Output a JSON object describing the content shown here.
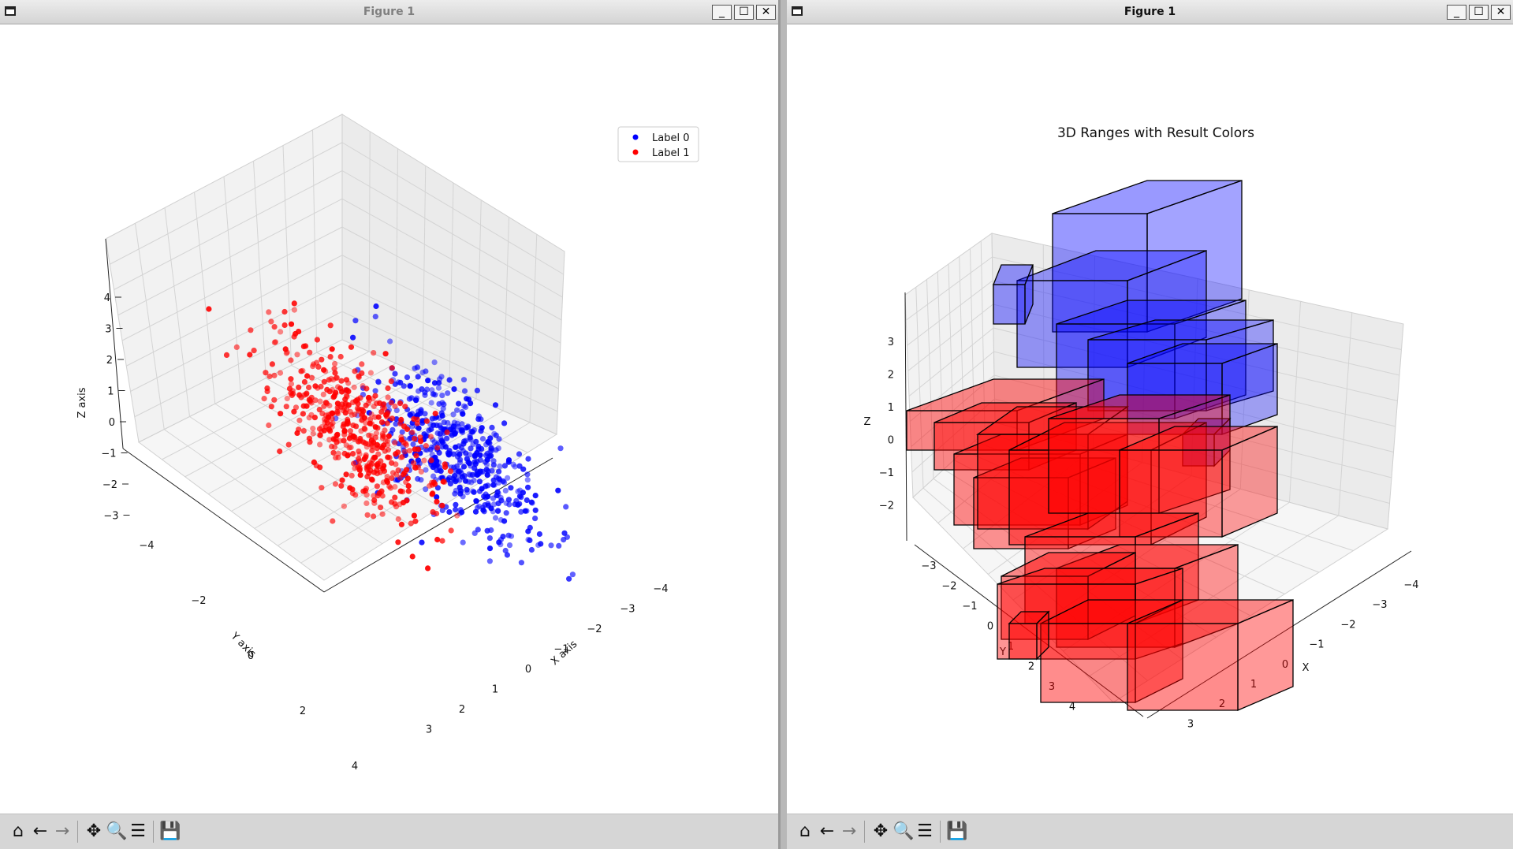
{
  "left_window": {
    "title": "Figure 1",
    "controls": {
      "minimize": "_",
      "maximize": "☐",
      "close": "✕"
    },
    "toolbar": [
      {
        "name": "home-icon",
        "glyph": "⌂"
      },
      {
        "name": "back-icon",
        "glyph": "←"
      },
      {
        "name": "forward-icon",
        "glyph": "→"
      },
      {
        "name": "pan-icon",
        "glyph": "✥"
      },
      {
        "name": "zoom-icon",
        "glyph": "🔍"
      },
      {
        "name": "configure-icon",
        "glyph": "☰"
      },
      {
        "name": "save-icon",
        "glyph": "💾"
      }
    ]
  },
  "right_window": {
    "title": "Figure 1",
    "controls": {
      "minimize": "_",
      "maximize": "☐",
      "close": "✕"
    },
    "toolbar": [
      {
        "name": "home-icon",
        "glyph": "⌂"
      },
      {
        "name": "back-icon",
        "glyph": "←"
      },
      {
        "name": "forward-icon",
        "glyph": "→"
      },
      {
        "name": "pan-icon",
        "glyph": "✥"
      },
      {
        "name": "zoom-icon",
        "glyph": "🔍"
      },
      {
        "name": "configure-icon",
        "glyph": "☰"
      },
      {
        "name": "save-icon",
        "glyph": "💾"
      }
    ]
  },
  "chart_data": [
    {
      "type": "scatter",
      "title": "",
      "xlabel": "X axis",
      "ylabel": "Y axis",
      "zlabel": "Z axis",
      "x_ticks": [
        "−4",
        "−3",
        "−2",
        "−1",
        "0",
        "1",
        "2",
        "3"
      ],
      "y_ticks": [
        "−4",
        "−2",
        "0",
        "2",
        "4"
      ],
      "z_ticks": [
        "4",
        "3",
        "2",
        "1",
        "0",
        "−1",
        "−2",
        "−3"
      ],
      "legend": {
        "placement": "top-right",
        "entries": [
          {
            "label": "Label 0",
            "color": "#0000ff"
          },
          {
            "label": "Label 1",
            "color": "#ff0000"
          }
        ]
      },
      "series": [
        {
          "name": "Label 0",
          "color": "#0000ff",
          "x_center": -1.0,
          "y_center": 0.5,
          "z_center": 0.5,
          "count": 500
        },
        {
          "name": "Label 1",
          "color": "#ff0000",
          "x_center": 1.0,
          "y_center": -1.0,
          "z_center": -0.8,
          "count": 500
        }
      ],
      "grid": true
    },
    {
      "type": "bar",
      "title": "3D Ranges with Result Colors",
      "xlabel": "X",
      "ylabel": "Y",
      "zlabel": "Z",
      "x_ticks": [
        "−4",
        "−3",
        "−2",
        "−1",
        "0",
        "1",
        "2",
        "3"
      ],
      "y_ticks": [
        "−3",
        "−2",
        "−1",
        "0",
        "1",
        "2",
        "3",
        "4"
      ],
      "z_ticks": [
        "3",
        "2",
        "1",
        "0",
        "−1",
        "−2"
      ],
      "colors": {
        "label_0": "#0000ff",
        "label_1": "#ff0000"
      },
      "grid": true
    }
  ]
}
